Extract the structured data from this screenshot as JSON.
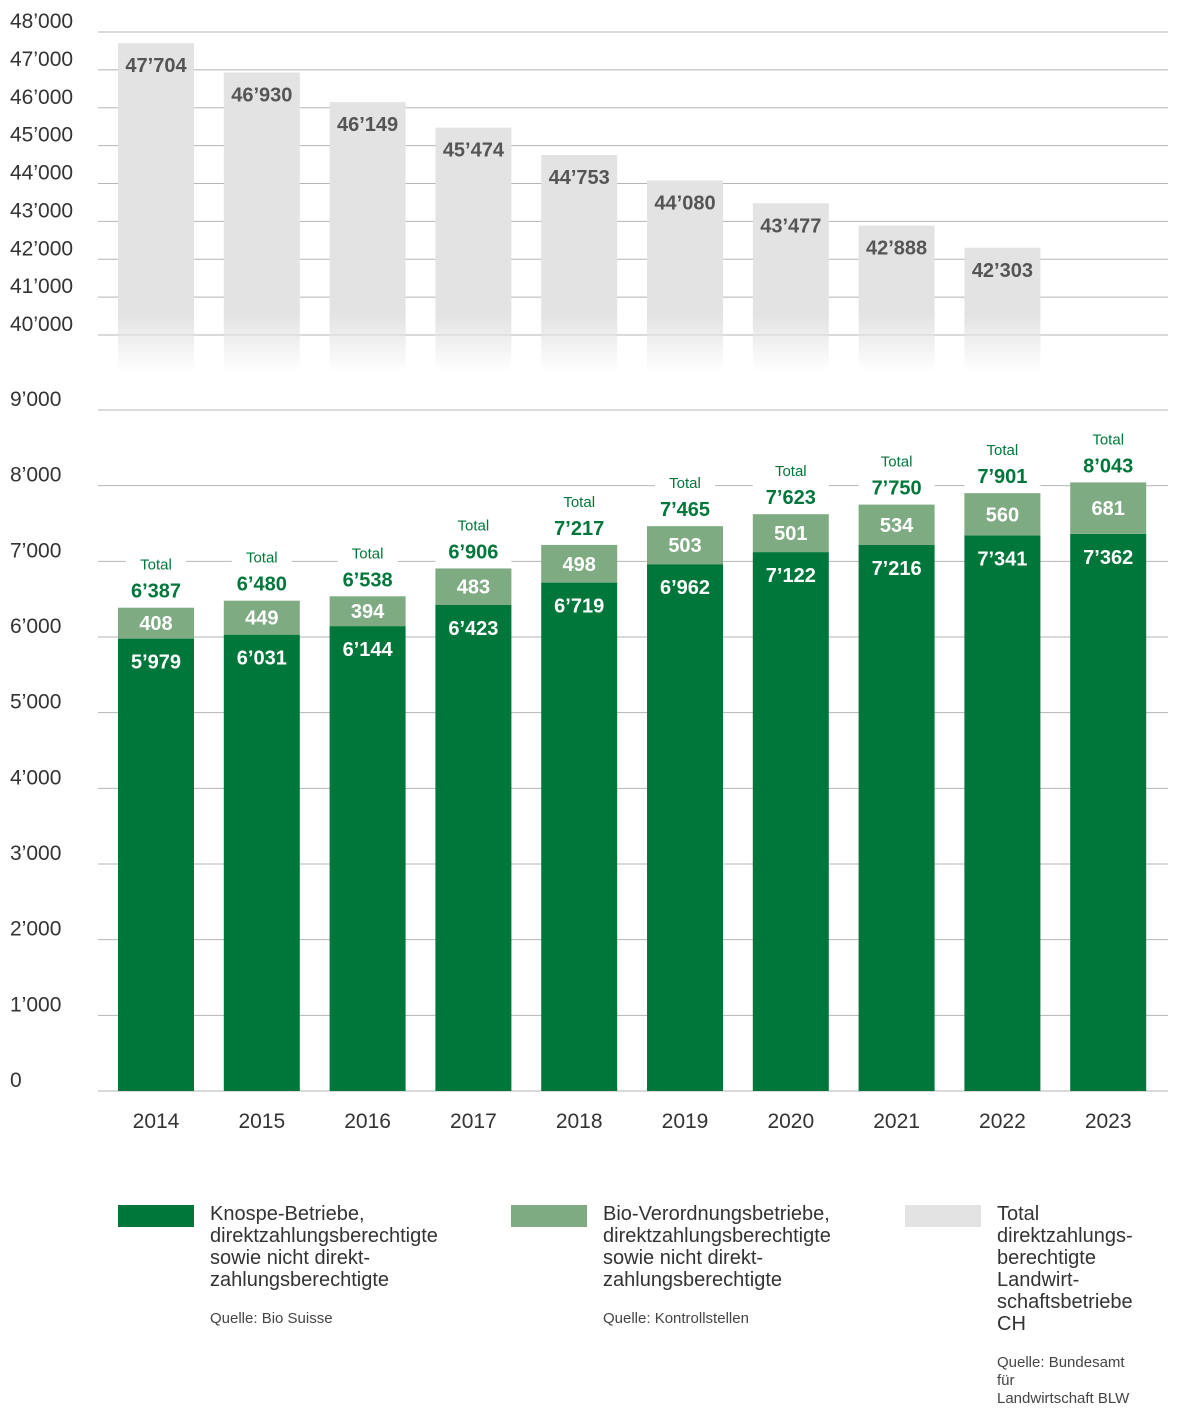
{
  "chart_data": [
    {
      "type": "bar",
      "title": "",
      "categories": [
        "2014",
        "2015",
        "2016",
        "2017",
        "2018",
        "2019",
        "2020",
        "2021",
        "2022"
      ],
      "series": [
        {
          "name": "Total direktzahlungsberechtigte Landwirtschaftsbetriebe CH",
          "values": [
            47704,
            46930,
            46149,
            45474,
            44753,
            44080,
            43477,
            42888,
            42303
          ],
          "labels": [
            "47’704",
            "46’930",
            "46’149",
            "45’474",
            "44’753",
            "44’080",
            "43’477",
            "42’888",
            "42’303"
          ]
        }
      ],
      "ylim": [
        40000,
        48000
      ],
      "yticks": [
        40000,
        41000,
        42000,
        43000,
        44000,
        45000,
        46000,
        47000,
        48000
      ],
      "ytick_labels": [
        "40’000",
        "41’000",
        "42’000",
        "43’000",
        "44’000",
        "45’000",
        "46’000",
        "47’000",
        "48’000"
      ],
      "grid": true,
      "color": "#e3e3e3"
    },
    {
      "type": "bar",
      "stacked": true,
      "title": "",
      "categories": [
        "2014",
        "2015",
        "2016",
        "2017",
        "2018",
        "2019",
        "2020",
        "2021",
        "2022",
        "2023"
      ],
      "series": [
        {
          "name": "Knospe-Betriebe, direktzahlungsberechtigte sowie nicht direkt-zahlungsberechtigte",
          "values": [
            5979,
            6031,
            6144,
            6423,
            6719,
            6962,
            7122,
            7216,
            7341,
            7362
          ],
          "labels": [
            "5’979",
            "6’031",
            "6’144",
            "6’423",
            "6’719",
            "6’962",
            "7’122",
            "7’216",
            "7’341",
            "7’362"
          ],
          "color": "#00773a"
        },
        {
          "name": "Bio-Verordnungsbetriebe, direktzahlungsberechtigte sowie nicht direkt-zahlungsberechtigte",
          "values": [
            408,
            449,
            394,
            483,
            498,
            503,
            501,
            534,
            560,
            681
          ],
          "labels": [
            "408",
            "449",
            "394",
            "483",
            "498",
            "503",
            "501",
            "534",
            "560",
            "681"
          ],
          "color": "#7fab83"
        }
      ],
      "totals": [
        6387,
        6480,
        6538,
        6906,
        7217,
        7465,
        7623,
        7750,
        7901,
        8043
      ],
      "total_labels": [
        "6’387",
        "6’480",
        "6’538",
        "6’906",
        "7’217",
        "7’465",
        "7’623",
        "7’750",
        "7’901",
        "8’043"
      ],
      "total_caption": "Total",
      "ylim": [
        0,
        9000
      ],
      "yticks": [
        0,
        1000,
        2000,
        3000,
        4000,
        5000,
        6000,
        7000,
        8000,
        9000
      ],
      "ytick_labels": [
        "0",
        "1’000",
        "2’000",
        "3’000",
        "4’000",
        "5’000",
        "6’000",
        "7’000",
        "8’000",
        "9’000"
      ],
      "grid": true
    }
  ],
  "legend": {
    "items": [
      {
        "label": "Knospe-Betriebe,\ndirektzahlungsberechtigte\nsowie nicht direkt-\nzahlungsberechtigte",
        "source": "Quelle: Bio Suisse",
        "color": "#00773a"
      },
      {
        "label": "Bio-Verordnungsbetriebe,\ndirektzahlungsberechtigte\nsowie nicht direkt-\nzahlungsberechtigte",
        "source": "Quelle: Kontrollstellen",
        "color": "#7fab83"
      },
      {
        "label": "Total direktzahlungs-\nberechtigte Landwirt-\nschaftsbetriebe CH",
        "source": "Quelle: Bundesamt für\nLandwirtschaft BLW",
        "color": "#e3e3e3"
      }
    ]
  }
}
